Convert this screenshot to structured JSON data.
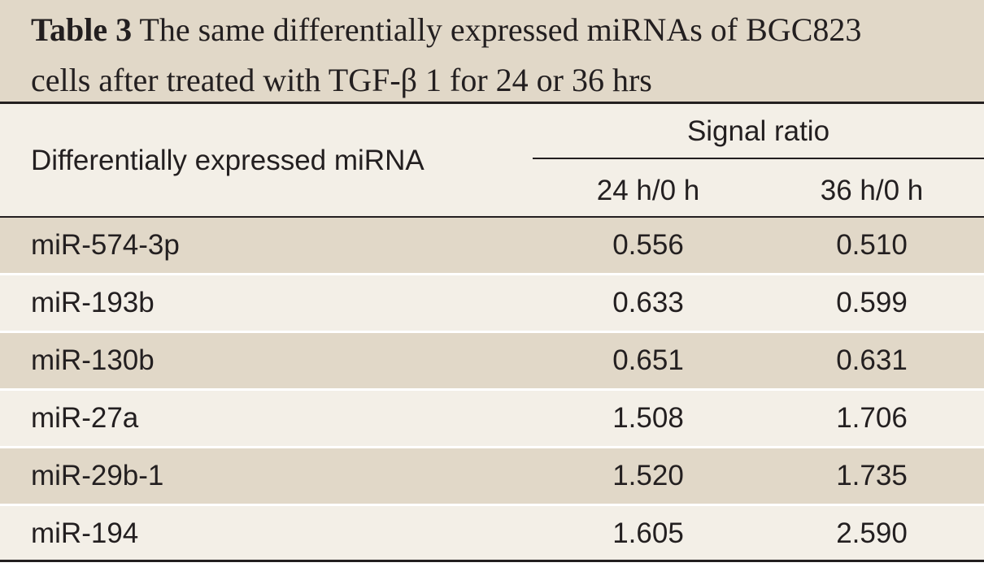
{
  "caption": {
    "label": "Table 3",
    "line1": "The same differentially expressed miRNAs of BGC823",
    "line2": "cells after treated with TGF-β 1 for 24 or 36 hrs"
  },
  "header": {
    "first_column": "Differentially expressed miRNA",
    "group": "Signal ratio",
    "sub_columns": [
      "24 h/0 h",
      "36 h/0 h"
    ]
  },
  "rows": [
    {
      "name": "miR-574-3p",
      "v1": "0.556",
      "v2": "0.510"
    },
    {
      "name": "miR-193b",
      "v1": "0.633",
      "v2": "0.599"
    },
    {
      "name": "miR-130b",
      "v1": "0.651",
      "v2": "0.631"
    },
    {
      "name": "miR-27a",
      "v1": "1.508",
      "v2": "1.706"
    },
    {
      "name": "miR-29b-1",
      "v1": "1.520",
      "v2": "1.735"
    },
    {
      "name": "miR-194",
      "v1": "1.605",
      "v2": "2.590"
    }
  ],
  "colors": {
    "caption_bg": "#e1d8c8",
    "shaded_row": "#e1d8c8",
    "light_row": "#f3efe7",
    "text": "#231f20"
  }
}
